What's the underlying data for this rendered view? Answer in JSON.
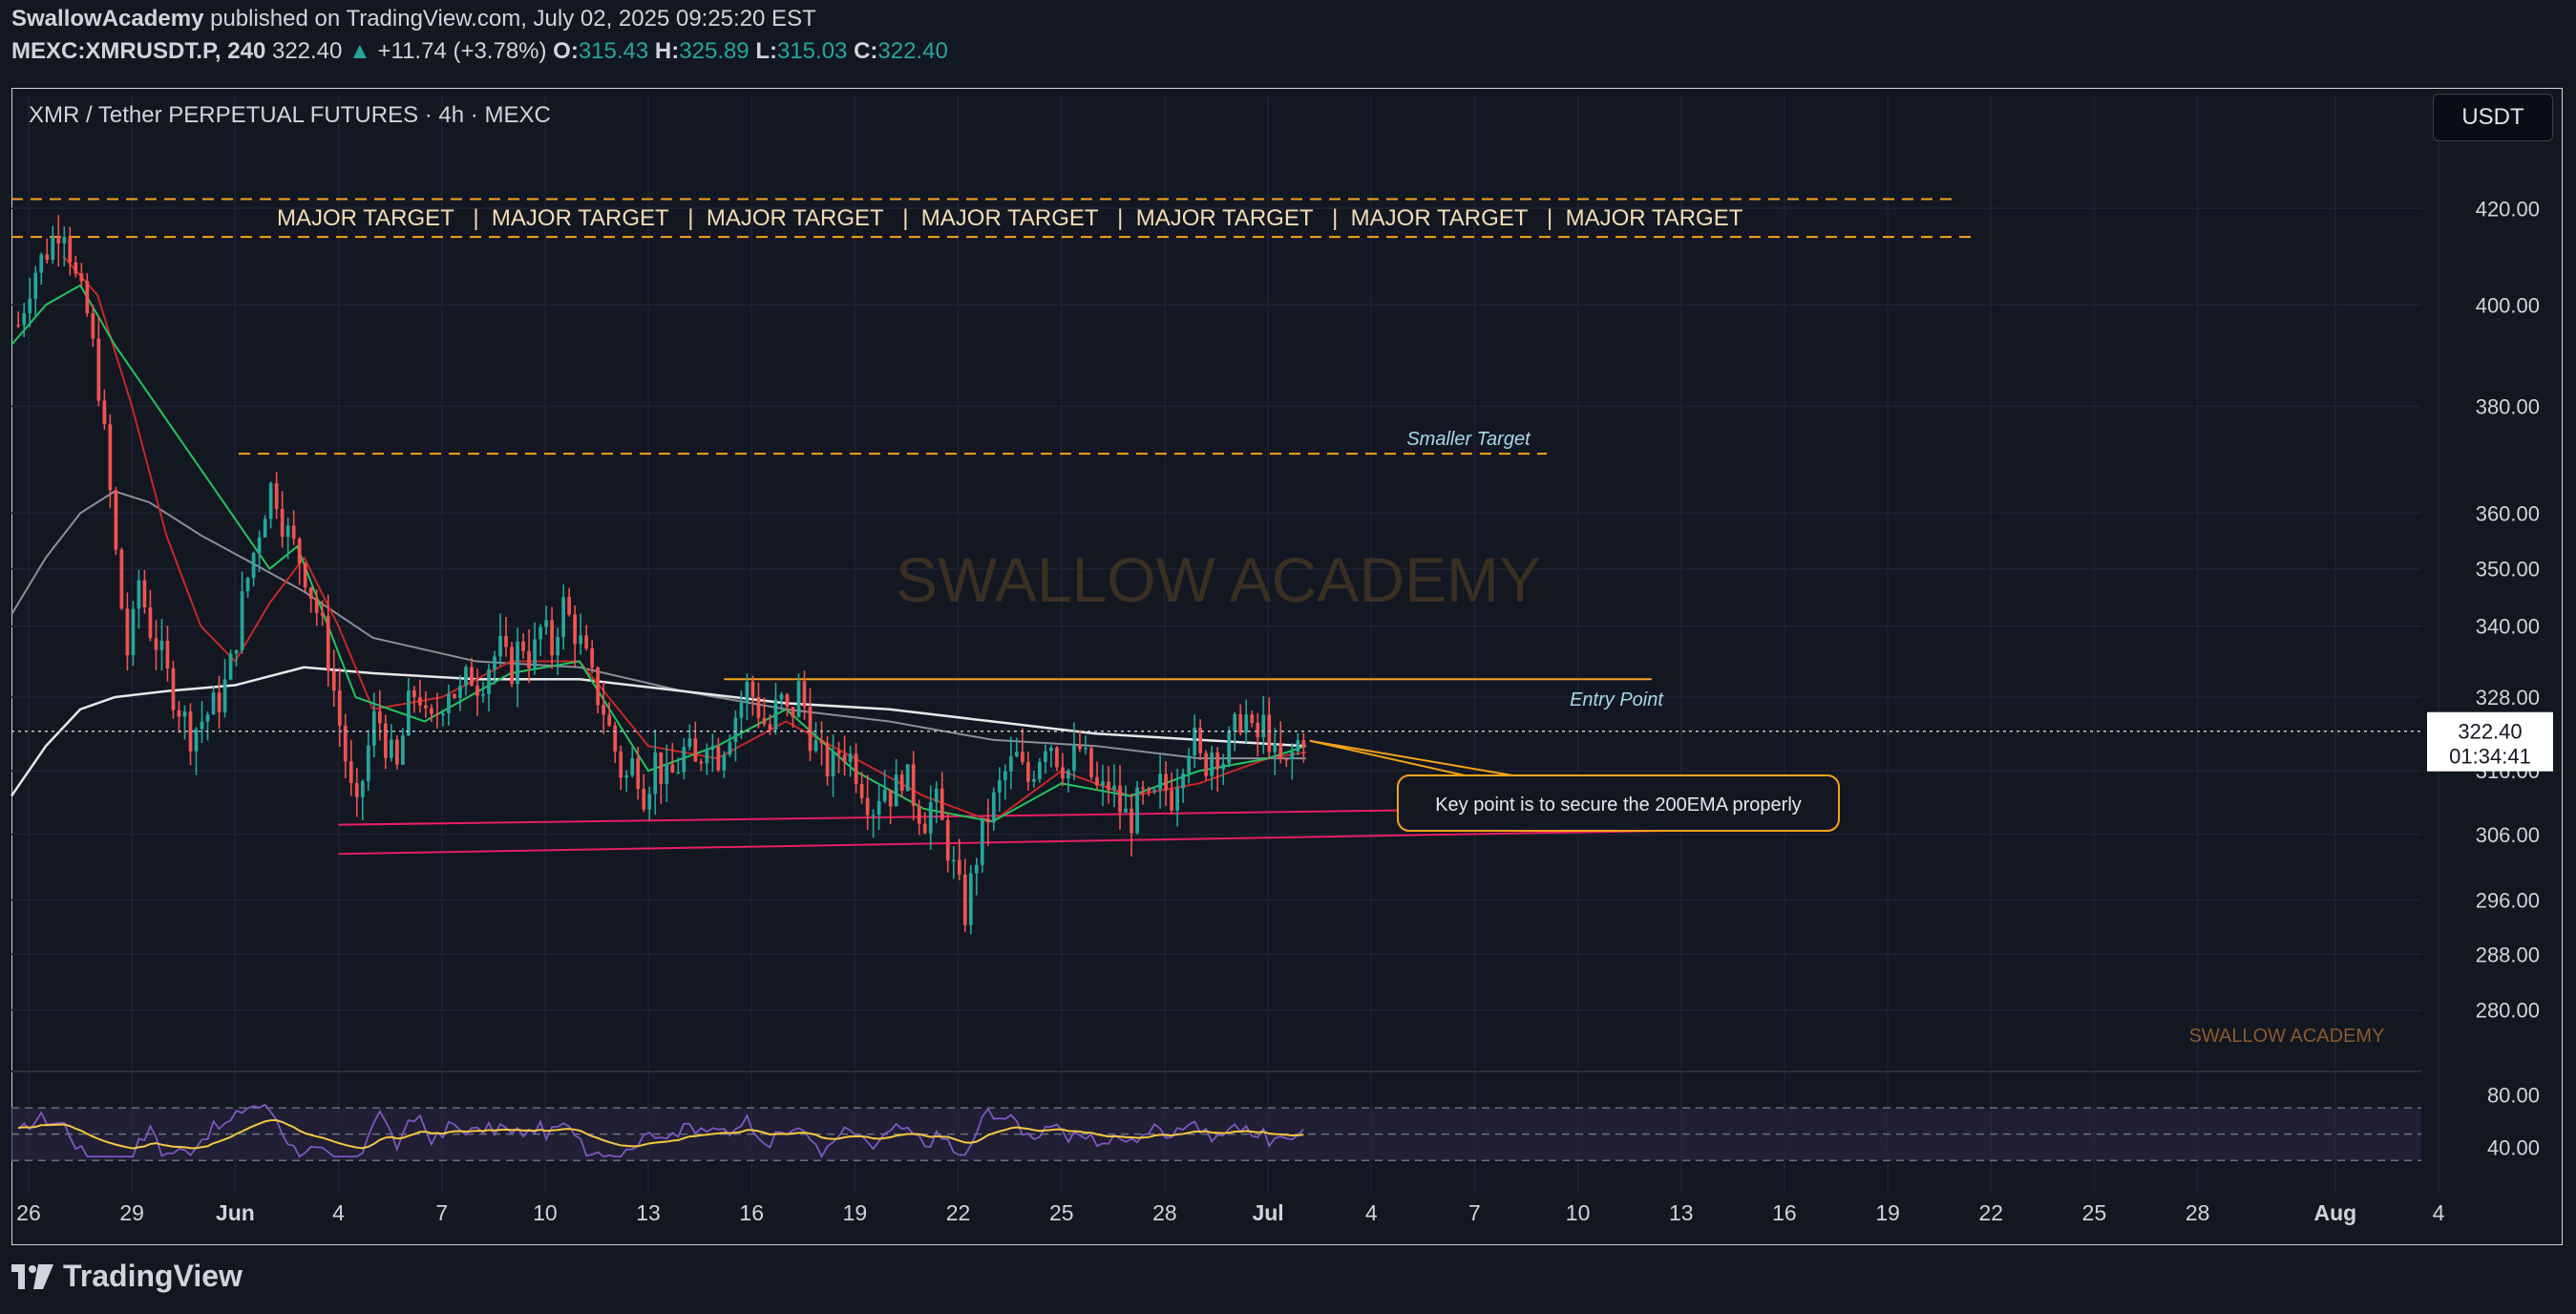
{
  "header": {
    "author": "SwallowAcademy",
    "published_text": " published on TradingView.com, July 02, 2025 09:25:20 EST",
    "symbol": "MEXC:XMRUSDT.P, 240",
    "last": "322.40",
    "change_arrow": "▲",
    "change": "+11.74 (+3.78%)",
    "o_label": "O:",
    "o_value": "315.43",
    "h_label": "H:",
    "h_value": "325.89",
    "l_label": "L:",
    "l_value": "315.03",
    "c_label": "C:",
    "c_value": "322.40"
  },
  "chart_title": "XMR / Tether PERPETUAL FUTURES · 4h · MEXC",
  "currency_button": "USDT",
  "watermark": "SWALLOW ACADEMY",
  "corner_watermark": "SWALLOW ACADEMY",
  "branding": "TradingView",
  "price_label": {
    "value": "322.40",
    "countdown": "01:34:41"
  },
  "annotations": {
    "major_target_label": "MAJOR TARGET",
    "major_target_text": "MAJOR TARGET   |  MAJOR TARGET   |  MAJOR TARGET   |  MAJOR TARGET   |  MAJOR TARGET   |  MAJOR TARGET   |  MAJOR TARGET",
    "smaller_target": "Smaller Target",
    "entry_point": "Entry Point",
    "callout": "Key point is to secure the 200EMA properly"
  },
  "colors": {
    "background": "#131722",
    "up": "#26a69a",
    "down": "#ef5350",
    "target_line": "#f7a21b",
    "support_line": "#e91e63",
    "ema_white": "#e8e8e8",
    "ema_red": "#c62828",
    "ema_green": "#22c55e",
    "rsi": "#7e57c2",
    "rsi_ma": "#f5c842"
  },
  "chart_data": {
    "type": "candlestick",
    "title": "XMR / Tether PERPETUAL FUTURES · 4h · MEXC",
    "timeframe": "4h",
    "currency": "USDT",
    "y_ticks": [
      420,
      400,
      380,
      360,
      350,
      340,
      328,
      316,
      306,
      296,
      288,
      280
    ],
    "y_tick_labels": [
      "420.00",
      "400.00",
      "380.00",
      "360.00",
      "350.00",
      "340.00",
      "328.00",
      "316.00",
      "306.00",
      "296.00",
      "288.00",
      "280.00"
    ],
    "y_scale": "log",
    "ylim": [
      273,
      432
    ],
    "x_ticks": [
      "26",
      "29",
      "Jun",
      "4",
      "7",
      "10",
      "13",
      "16",
      "19",
      "22",
      "25",
      "28",
      "Jul",
      "4",
      "7",
      "10",
      "13",
      "16",
      "19",
      "22",
      "25",
      "28",
      "Aug",
      "4"
    ],
    "x_range_days": [
      -5.5,
      64.5
    ],
    "x_origin_label": "May 31, 2025",
    "last_price": 322.4,
    "levels": {
      "major_target_top": 422,
      "major_target_bottom": 414,
      "smaller_target": 371,
      "entry_point": 331,
      "support_upper": {
        "from_day": 4.0,
        "from_price": 307.5,
        "to_day": 45.0,
        "to_price": 310.5
      },
      "support_lower": {
        "from_day": 4.0,
        "from_price": 303.0,
        "to_day": 45.0,
        "to_price": 306.8
      }
    },
    "price_path": [
      {
        "d": -5.3,
        "p": 396
      },
      {
        "d": -4.9,
        "p": 406
      },
      {
        "d": -4.4,
        "p": 412
      },
      {
        "d": -4.0,
        "p": 418
      },
      {
        "d": -3.6,
        "p": 404
      },
      {
        "d": -3.3,
        "p": 398
      },
      {
        "d": -3.0,
        "p": 386
      },
      {
        "d": -2.7,
        "p": 368
      },
      {
        "d": -2.4,
        "p": 348
      },
      {
        "d": -2.1,
        "p": 334
      },
      {
        "d": -1.8,
        "p": 348
      },
      {
        "d": -1.5,
        "p": 340
      },
      {
        "d": -1.2,
        "p": 336
      },
      {
        "d": -0.9,
        "p": 330
      },
      {
        "d": -0.6,
        "p": 326
      },
      {
        "d": -0.3,
        "p": 322
      },
      {
        "d": 0.0,
        "p": 324
      },
      {
        "d": 0.3,
        "p": 326
      },
      {
        "d": 0.6,
        "p": 328
      },
      {
        "d": 0.9,
        "p": 334
      },
      {
        "d": 1.2,
        "p": 344
      },
      {
        "d": 1.5,
        "p": 352
      },
      {
        "d": 1.8,
        "p": 360
      },
      {
        "d": 2.1,
        "p": 366
      },
      {
        "d": 2.4,
        "p": 358
      },
      {
        "d": 2.7,
        "p": 354
      },
      {
        "d": 3.0,
        "p": 350
      },
      {
        "d": 3.3,
        "p": 344
      },
      {
        "d": 3.6,
        "p": 338
      },
      {
        "d": 3.9,
        "p": 328
      },
      {
        "d": 4.2,
        "p": 318
      },
      {
        "d": 4.5,
        "p": 308
      },
      {
        "d": 4.8,
        "p": 318
      },
      {
        "d": 5.1,
        "p": 326
      },
      {
        "d": 5.4,
        "p": 320
      },
      {
        "d": 5.7,
        "p": 316
      },
      {
        "d": 6.0,
        "p": 326
      },
      {
        "d": 6.3,
        "p": 330
      },
      {
        "d": 6.6,
        "p": 322
      },
      {
        "d": 6.9,
        "p": 326
      },
      {
        "d": 7.2,
        "p": 330
      },
      {
        "d": 7.5,
        "p": 328
      },
      {
        "d": 7.8,
        "p": 332
      },
      {
        "d": 8.1,
        "p": 330
      },
      {
        "d": 8.4,
        "p": 334
      },
      {
        "d": 8.7,
        "p": 336
      },
      {
        "d": 9.0,
        "p": 332
      },
      {
        "d": 9.3,
        "p": 338
      },
      {
        "d": 9.6,
        "p": 334
      },
      {
        "d": 9.9,
        "p": 340
      },
      {
        "d": 10.2,
        "p": 336
      },
      {
        "d": 10.5,
        "p": 344
      },
      {
        "d": 10.8,
        "p": 340
      },
      {
        "d": 11.1,
        "p": 336
      },
      {
        "d": 11.4,
        "p": 330
      },
      {
        "d": 11.7,
        "p": 326
      },
      {
        "d": 12.0,
        "p": 320
      },
      {
        "d": 12.3,
        "p": 314
      },
      {
        "d": 12.6,
        "p": 318
      },
      {
        "d": 12.9,
        "p": 312
      },
      {
        "d": 13.2,
        "p": 318
      },
      {
        "d": 13.5,
        "p": 314
      },
      {
        "d": 13.8,
        "p": 316
      },
      {
        "d": 14.1,
        "p": 320
      },
      {
        "d": 14.4,
        "p": 316
      },
      {
        "d": 14.7,
        "p": 322
      },
      {
        "d": 15.0,
        "p": 318
      },
      {
        "d": 15.3,
        "p": 322
      },
      {
        "d": 15.6,
        "p": 326
      },
      {
        "d": 15.9,
        "p": 330
      },
      {
        "d": 16.2,
        "p": 326
      },
      {
        "d": 16.5,
        "p": 322
      },
      {
        "d": 16.8,
        "p": 328
      },
      {
        "d": 17.1,
        "p": 324
      },
      {
        "d": 17.4,
        "p": 330
      },
      {
        "d": 17.7,
        "p": 322
      },
      {
        "d": 18.0,
        "p": 318
      },
      {
        "d": 18.3,
        "p": 316
      },
      {
        "d": 18.6,
        "p": 320
      },
      {
        "d": 18.9,
        "p": 318
      },
      {
        "d": 19.2,
        "p": 314
      },
      {
        "d": 19.5,
        "p": 310
      },
      {
        "d": 19.8,
        "p": 314
      },
      {
        "d": 20.1,
        "p": 312
      },
      {
        "d": 20.4,
        "p": 316
      },
      {
        "d": 20.7,
        "p": 312
      },
      {
        "d": 21.0,
        "p": 308
      },
      {
        "d": 21.3,
        "p": 312
      },
      {
        "d": 21.6,
        "p": 306
      },
      {
        "d": 21.9,
        "p": 300
      },
      {
        "d": 22.2,
        "p": 294
      },
      {
        "d": 22.5,
        "p": 302
      },
      {
        "d": 22.8,
        "p": 308
      },
      {
        "d": 23.1,
        "p": 312
      },
      {
        "d": 23.4,
        "p": 316
      },
      {
        "d": 23.7,
        "p": 318
      },
      {
        "d": 24.0,
        "p": 314
      },
      {
        "d": 24.3,
        "p": 318
      },
      {
        "d": 24.6,
        "p": 322
      },
      {
        "d": 24.9,
        "p": 318
      },
      {
        "d": 25.2,
        "p": 316
      },
      {
        "d": 25.5,
        "p": 320
      },
      {
        "d": 25.8,
        "p": 316
      },
      {
        "d": 26.1,
        "p": 312
      },
      {
        "d": 26.4,
        "p": 314
      },
      {
        "d": 26.7,
        "p": 310
      },
      {
        "d": 27.0,
        "p": 308
      },
      {
        "d": 27.3,
        "p": 312
      },
      {
        "d": 27.6,
        "p": 310
      },
      {
        "d": 27.9,
        "p": 314
      },
      {
        "d": 28.2,
        "p": 312
      },
      {
        "d": 28.5,
        "p": 318
      },
      {
        "d": 28.8,
        "p": 322
      },
      {
        "d": 29.1,
        "p": 316
      },
      {
        "d": 29.4,
        "p": 320
      },
      {
        "d": 29.7,
        "p": 318
      },
      {
        "d": 30.0,
        "p": 322
      },
      {
        "d": 30.3,
        "p": 326
      },
      {
        "d": 30.6,
        "p": 320
      },
      {
        "d": 30.9,
        "p": 324
      },
      {
        "d": 31.2,
        "p": 318
      },
      {
        "d": 31.5,
        "p": 316
      },
      {
        "d": 31.8,
        "p": 320
      },
      {
        "d": 32.1,
        "p": 322.4
      }
    ],
    "ema_200_white": [
      {
        "d": -5.5,
        "p": 312
      },
      {
        "d": -4.5,
        "p": 320
      },
      {
        "d": -3.5,
        "p": 326
      },
      {
        "d": -2.5,
        "p": 328
      },
      {
        "d": -1.0,
        "p": 329
      },
      {
        "d": 1.0,
        "p": 330
      },
      {
        "d": 3.0,
        "p": 333
      },
      {
        "d": 5.0,
        "p": 332
      },
      {
        "d": 8.0,
        "p": 331
      },
      {
        "d": 11.0,
        "p": 331
      },
      {
        "d": 14.0,
        "p": 329
      },
      {
        "d": 17.0,
        "p": 327
      },
      {
        "d": 20.0,
        "p": 326
      },
      {
        "d": 23.0,
        "p": 324
      },
      {
        "d": 26.0,
        "p": 322
      },
      {
        "d": 29.0,
        "p": 321
      },
      {
        "d": 32.1,
        "p": 320
      }
    ],
    "ema_gray": [
      {
        "d": -5.5,
        "p": 342
      },
      {
        "d": -4.5,
        "p": 352
      },
      {
        "d": -3.5,
        "p": 360
      },
      {
        "d": -2.5,
        "p": 364
      },
      {
        "d": -1.5,
        "p": 362
      },
      {
        "d": 0.0,
        "p": 356
      },
      {
        "d": 1.5,
        "p": 351
      },
      {
        "d": 3.0,
        "p": 346
      },
      {
        "d": 5.0,
        "p": 338
      },
      {
        "d": 8.0,
        "p": 334
      },
      {
        "d": 11.0,
        "p": 333
      },
      {
        "d": 14.0,
        "p": 329
      },
      {
        "d": 17.0,
        "p": 326
      },
      {
        "d": 20.0,
        "p": 324
      },
      {
        "d": 23.0,
        "p": 321
      },
      {
        "d": 26.0,
        "p": 320
      },
      {
        "d": 29.0,
        "p": 318
      },
      {
        "d": 32.1,
        "p": 318
      }
    ],
    "ema_red": [
      {
        "d": -4.0,
        "p": 410
      },
      {
        "d": -3.0,
        "p": 402
      },
      {
        "d": -2.0,
        "p": 380
      },
      {
        "d": -1.0,
        "p": 356
      },
      {
        "d": 0.0,
        "p": 340
      },
      {
        "d": 1.0,
        "p": 334
      },
      {
        "d": 2.0,
        "p": 344
      },
      {
        "d": 3.0,
        "p": 352
      },
      {
        "d": 4.0,
        "p": 340
      },
      {
        "d": 5.0,
        "p": 326
      },
      {
        "d": 7.0,
        "p": 328
      },
      {
        "d": 9.0,
        "p": 334
      },
      {
        "d": 11.0,
        "p": 334
      },
      {
        "d": 13.0,
        "p": 320
      },
      {
        "d": 15.0,
        "p": 318
      },
      {
        "d": 17.0,
        "p": 324
      },
      {
        "d": 19.0,
        "p": 318
      },
      {
        "d": 21.0,
        "p": 312
      },
      {
        "d": 23.0,
        "p": 308
      },
      {
        "d": 25.0,
        "p": 316
      },
      {
        "d": 27.0,
        "p": 312
      },
      {
        "d": 29.0,
        "p": 314
      },
      {
        "d": 31.0,
        "p": 318
      },
      {
        "d": 32.1,
        "p": 319
      }
    ],
    "ema_green": [
      {
        "d": -5.5,
        "p": 392
      },
      {
        "d": -4.5,
        "p": 400
      },
      {
        "d": -3.5,
        "p": 404
      },
      {
        "d": -2.5,
        "p": 392
      },
      {
        "d": 2.0,
        "p": 350
      },
      {
        "d": 2.8,
        "p": 354
      },
      {
        "d": 4.5,
        "p": 328
      },
      {
        "d": 6.5,
        "p": 324
      },
      {
        "d": 9.0,
        "p": 332
      },
      {
        "d": 11.0,
        "p": 334
      },
      {
        "d": 13.0,
        "p": 316
      },
      {
        "d": 15.0,
        "p": 320
      },
      {
        "d": 17.0,
        "p": 326
      },
      {
        "d": 19.0,
        "p": 316
      },
      {
        "d": 21.0,
        "p": 310
      },
      {
        "d": 23.0,
        "p": 308
      },
      {
        "d": 25.0,
        "p": 314
      },
      {
        "d": 27.0,
        "p": 312
      },
      {
        "d": 29.0,
        "p": 316
      },
      {
        "d": 31.0,
        "p": 318
      },
      {
        "d": 32.1,
        "p": 320
      }
    ],
    "rsi": {
      "y_ticks": [
        80,
        40
      ],
      "y_tick_labels": [
        "80.00",
        "40.00"
      ],
      "ylim": [
        28,
        86
      ],
      "band": [
        70,
        30
      ]
    }
  }
}
